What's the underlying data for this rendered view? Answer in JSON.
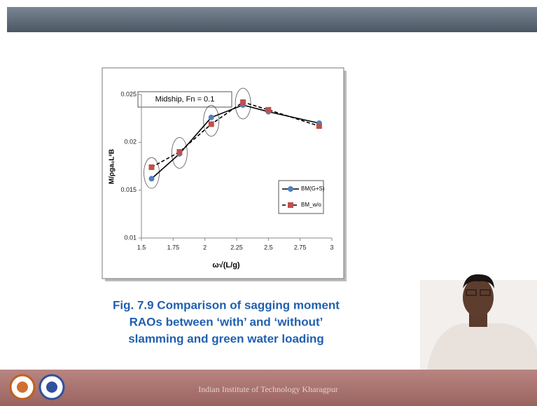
{
  "chart_data": {
    "type": "line",
    "annotation": "Midship, Fn = 0.1",
    "x_label": "ω√(L/g)",
    "y_label": "M/ρga₀L²B",
    "x": [
      1.58,
      1.8,
      2.05,
      2.3,
      2.5,
      2.9
    ],
    "series": [
      {
        "name": "BM(G+S)",
        "color": "#4f81bd",
        "marker": "circle",
        "line_style": "solid",
        "values": [
          0.0162,
          0.0188,
          0.0226,
          0.0239,
          0.0232,
          0.022
        ]
      },
      {
        "name": "BM_w/o",
        "color": "#c0504d",
        "marker": "square",
        "line_style": "dashed",
        "values": [
          0.0174,
          0.019,
          0.0219,
          0.0242,
          0.0234,
          0.0217
        ]
      }
    ],
    "xlim": [
      1.5,
      3
    ],
    "xticks": [
      1.5,
      1.75,
      2,
      2.25,
      2.5,
      2.75,
      3
    ],
    "ylim": [
      0.01,
      0.025
    ],
    "yticks": [
      0.01,
      0.015,
      0.02,
      0.025
    ],
    "grid": false,
    "legend": "right"
  },
  "caption": [
    "Fig. 7.9 Comparison of sagging moment",
    "RAOs between ‘with’ and ‘without’",
    "slamming and green water loading"
  ],
  "footer": "Indian Institute of Technology Kharagpur"
}
